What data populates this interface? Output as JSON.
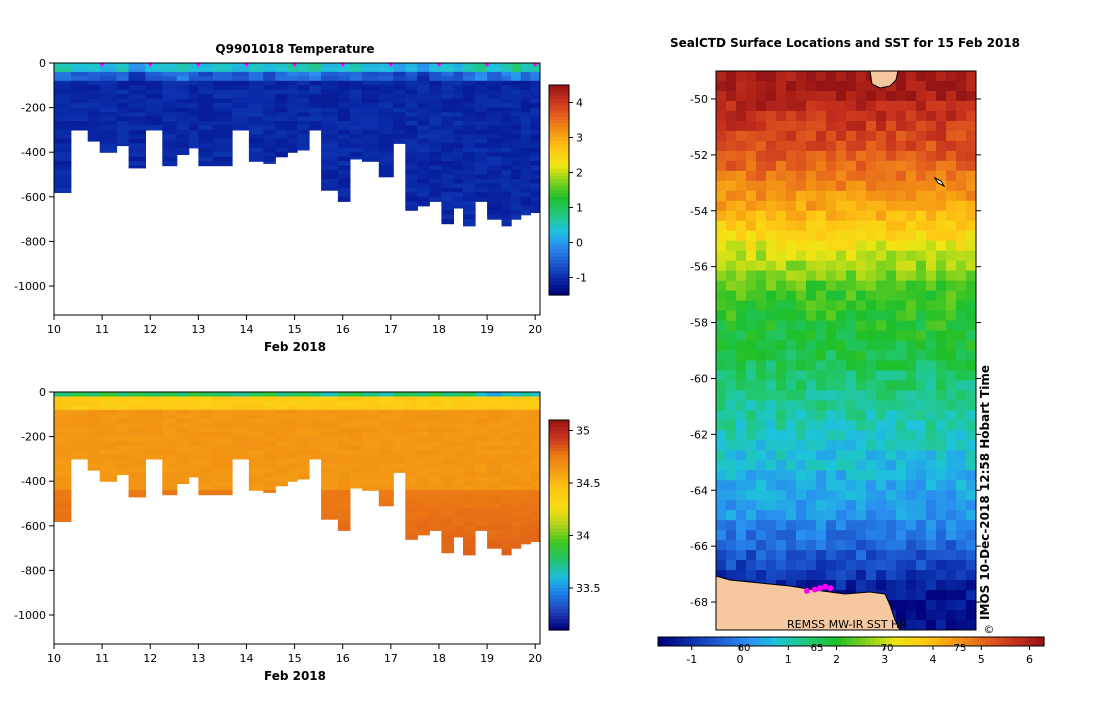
{
  "colors": {
    "temp_scale": [
      "#00007a",
      "#0a2aa8",
      "#1e5ad0",
      "#2a8ef0",
      "#1ec4dc",
      "#22c87a",
      "#1fbf2a",
      "#80d21e",
      "#f0e614",
      "#ffc814",
      "#f59a14",
      "#e6641e",
      "#c8321e",
      "#961414"
    ],
    "sal_scale": [
      "#00007a",
      "#1e3cb4",
      "#1e78e6",
      "#1ebee0",
      "#22c46a",
      "#3ec81e",
      "#b4d21e",
      "#f5dc14",
      "#ffc814",
      "#f5a014",
      "#eb7814",
      "#c8321e",
      "#961414"
    ],
    "land": "#f5c8a0"
  },
  "chart_data": [
    {
      "type": "heatmap",
      "name": "temperature_section",
      "title": "Q9901018  Temperature",
      "xlabel": "Feb 2018",
      "x_ticks": [
        "10",
        "11",
        "12",
        "13",
        "14",
        "15",
        "16",
        "17",
        "18",
        "19",
        "20"
      ],
      "y_ticks": [
        "0",
        "-200",
        "-400",
        "-600",
        "-800",
        "-1000"
      ],
      "x_range": [
        10,
        20.1
      ],
      "y_range": [
        -1130,
        0
      ],
      "colorbar_ticks": [
        "4",
        "3",
        "2",
        "1",
        "0",
        "-1"
      ],
      "colorbar_range": [
        -1.5,
        4.5
      ],
      "surface_profile_days": [
        11,
        12,
        13,
        14,
        15,
        16,
        17,
        18,
        19,
        20
      ],
      "profile_day": [
        10.0,
        10.35,
        10.7,
        10.95,
        11.3,
        11.55,
        11.9,
        12.25,
        12.55,
        12.8,
        13.0,
        13.3,
        13.7,
        14.05,
        14.35,
        14.6,
        14.85,
        15.05,
        15.3,
        15.55,
        15.9,
        16.15,
        16.4,
        16.75,
        17.05,
        17.3,
        17.55,
        17.8,
        18.05,
        18.3,
        18.5,
        18.75,
        19.0,
        19.3,
        19.5,
        19.7,
        19.9
      ],
      "profile_max_depth": [
        -580,
        -300,
        -350,
        -400,
        -370,
        -470,
        -300,
        -460,
        -410,
        -380,
        -460,
        -460,
        -300,
        -440,
        -450,
        -420,
        -400,
        -390,
        -300,
        -570,
        -620,
        -430,
        -440,
        -510,
        -360,
        -660,
        -640,
        -620,
        -720,
        -650,
        -730,
        -620,
        -700,
        -730,
        -700,
        -680,
        -670
      ],
      "profile_surface_temp": [
        0.5,
        0.2,
        0.3,
        0.1,
        0.4,
        -0.1,
        0.2,
        0.3,
        0.5,
        0.2,
        0.1,
        0.3,
        0.2,
        0.4,
        0.1,
        0.3,
        0.5,
        0.4,
        0.6,
        0.2,
        0.3,
        0.4,
        0.1,
        0.2,
        0.0,
        0.1,
        -0.2,
        0.2,
        0.3,
        0.1,
        0.4,
        0.6,
        0.3,
        0.5,
        0.7,
        0.4,
        0.6
      ],
      "deep_temp": -1.2
    },
    {
      "type": "heatmap",
      "name": "salinity_section",
      "title": "",
      "xlabel": "Feb 2018",
      "x_ticks": [
        "10",
        "11",
        "12",
        "13",
        "14",
        "15",
        "16",
        "17",
        "18",
        "19",
        "20"
      ],
      "y_ticks": [
        "0",
        "-200",
        "-400",
        "-600",
        "-800",
        "-1000"
      ],
      "x_range": [
        10,
        20.1
      ],
      "y_range": [
        -1130,
        0
      ],
      "colorbar_ticks": [
        "35",
        "34.5",
        "34",
        "33.5"
      ],
      "colorbar_range": [
        33.1,
        35.1
      ],
      "profile_surface_sal": [
        33.7,
        33.8,
        33.75,
        33.85,
        33.7,
        33.8,
        33.75,
        33.8,
        33.7,
        33.85,
        33.8,
        33.75,
        33.7,
        33.8,
        33.85,
        33.7,
        33.75,
        33.8,
        33.7,
        33.6,
        33.75,
        33.8,
        33.7,
        33.65,
        33.8,
        33.75,
        33.7,
        33.8,
        33.7,
        33.75,
        33.8,
        33.6,
        33.5,
        33.65,
        33.6,
        33.7,
        33.6
      ],
      "intermediate_sal": 34.62,
      "deep_sal": 34.75
    },
    {
      "type": "heatmap",
      "name": "sst_map",
      "title": "SealCTD Surface Locations and SST for 15 Feb 2018",
      "y_ticks": [
        "-50",
        "-52",
        "-54",
        "-56",
        "-58",
        "-60",
        "-62",
        "-64",
        "-66",
        "-68"
      ],
      "lat_range": [
        -69,
        -49
      ],
      "colorbar_ticks": [
        "-1",
        "0",
        "1",
        "2",
        "3",
        "4",
        "5",
        "6"
      ],
      "colorbar_inner_ticks": [
        "60",
        "65",
        "70",
        "75"
      ],
      "colorbar_range": [
        -1.7,
        6.3
      ],
      "watermark": "REMSS MW-IR SST HR",
      "timestamp": "IMOS 10-Dec-2018 12:58 Hobart Time",
      "copyright": "©",
      "sst_by_lat": [
        {
          "lat": -49.5,
          "sst": 6.2
        },
        {
          "lat": -51,
          "sst": 5.6
        },
        {
          "lat": -52.5,
          "sst": 5.0
        },
        {
          "lat": -54,
          "sst": 4.2
        },
        {
          "lat": -55.5,
          "sst": 3.0
        },
        {
          "lat": -57,
          "sst": 2.2
        },
        {
          "lat": -59,
          "sst": 1.8
        },
        {
          "lat": -61,
          "sst": 1.2
        },
        {
          "lat": -63,
          "sst": 0.7
        },
        {
          "lat": -65,
          "sst": 0.2
        },
        {
          "lat": -66.5,
          "sst": -0.6
        },
        {
          "lat": -68,
          "sst": -1.5
        }
      ],
      "profile_locations": [
        {
          "lon_frac": 0.35,
          "lat": -67.6
        },
        {
          "lon_frac": 0.38,
          "lat": -67.55
        },
        {
          "lon_frac": 0.4,
          "lat": -67.5
        },
        {
          "lon_frac": 0.42,
          "lat": -67.45
        },
        {
          "lon_frac": 0.44,
          "lat": -67.5
        }
      ]
    }
  ]
}
